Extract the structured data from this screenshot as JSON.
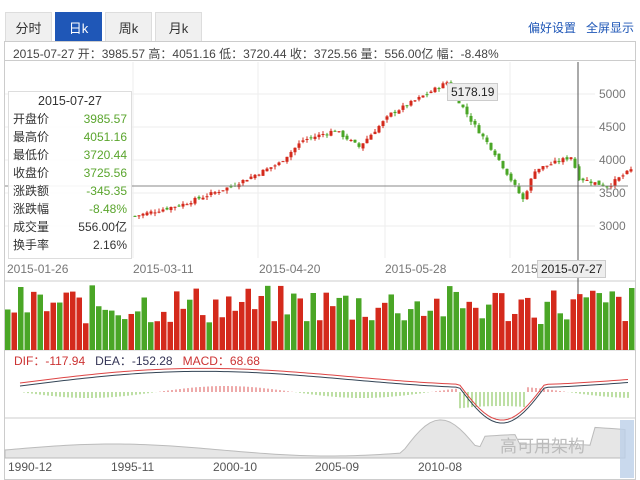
{
  "tabs": [
    {
      "label": "分时",
      "active": false
    },
    {
      "label": "日k",
      "active": true
    },
    {
      "label": "周k",
      "active": false
    },
    {
      "label": "月k",
      "active": false
    }
  ],
  "links": {
    "preferences": "偏好设置",
    "fullscreen": "全屏显示"
  },
  "infobar": "2015-07-27 开：3985.57 高：4051.16 低：3720.44 收：3725.56 量：556.00亿 幅：-8.48%",
  "panel": {
    "date": "2015-07-27",
    "rows": [
      {
        "label": "开盘价",
        "value": "3985.57"
      },
      {
        "label": "最高价",
        "value": "4051.16"
      },
      {
        "label": "最低价",
        "value": "3720.44"
      },
      {
        "label": "收盘价",
        "value": "3725.56"
      },
      {
        "label": "涨跌额",
        "value": "-345.35"
      },
      {
        "label": "涨跌幅",
        "value": "-8.48%"
      },
      {
        "label": "成交量",
        "value": "556.00亿"
      },
      {
        "label": "换手率",
        "value": "2.16%"
      }
    ]
  },
  "price_axis": [
    "5000",
    "4500",
    "4000",
    "3500",
    "3000"
  ],
  "date_axis": [
    "2015-01-26",
    "2015-03-11",
    "2015-04-20",
    "2015-05-28",
    "2015"
  ],
  "max_tag": "5178.19",
  "cursor_date": "2015-07-27",
  "macd": {
    "dif_label": "DIF：",
    "dif": "-117.94",
    "dea_label": "DEA：",
    "dea": "-152.28",
    "macd_label": "MACD：",
    "macd": "68.68"
  },
  "navigator_axis": [
    "1990-12",
    "1995-11",
    "2000-10",
    "2005-09",
    "2010-08"
  ],
  "watermark": "高可用架构",
  "colors": {
    "up": "#d42a1c",
    "down": "#4aa626",
    "accent": "#1f57b7"
  },
  "chart_data": {
    "type": "candlestick",
    "price_keypoints": [
      [
        0,
        3150
      ],
      [
        12,
        3330
      ],
      [
        24,
        3600
      ],
      [
        36,
        3950
      ],
      [
        42,
        4300
      ],
      [
        50,
        4450
      ],
      [
        56,
        4200
      ],
      [
        64,
        4700
      ],
      [
        70,
        4900
      ],
      [
        78,
        5178.19
      ],
      [
        84,
        4600
      ],
      [
        90,
        4100
      ],
      [
        97,
        3400
      ],
      [
        100,
        3850
      ],
      [
        109,
        4050
      ],
      [
        111,
        3725.56
      ],
      [
        118,
        3600
      ],
      [
        124,
        3850
      ]
    ],
    "ylim": [
      2700,
      5300
    ]
  }
}
